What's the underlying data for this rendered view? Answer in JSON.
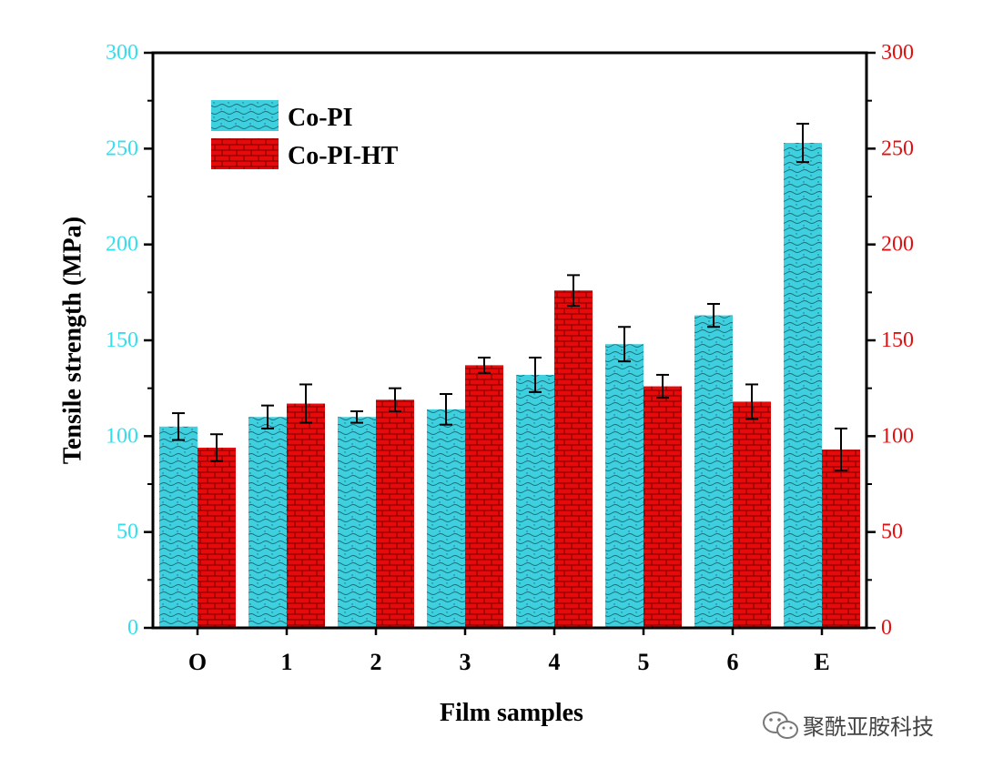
{
  "chart_data": {
    "type": "bar",
    "categories": [
      "O",
      "1",
      "2",
      "3",
      "4",
      "5",
      "6",
      "E"
    ],
    "series": [
      {
        "name": "Co-PI",
        "values": [
          105,
          110,
          110,
          114,
          132,
          148,
          163,
          253
        ],
        "errors": [
          7,
          6,
          3,
          8,
          9,
          9,
          6,
          10
        ],
        "color": "#3fd0e0"
      },
      {
        "name": "Co-PI-HT",
        "values": [
          94,
          117,
          119,
          137,
          176,
          126,
          118,
          93
        ],
        "errors": [
          7,
          10,
          6,
          4,
          8,
          6,
          9,
          11
        ],
        "color": "#e60a0a"
      }
    ],
    "xlabel": "Film samples",
    "ylabel": "Tensile strength (MPa)",
    "ylim": [
      0,
      300
    ],
    "yticks": [
      "0",
      "50",
      "100",
      "150",
      "200",
      "250",
      "300"
    ],
    "left_axis_color": "#33dfee",
    "right_axis_color": "#e01010",
    "legend_position": "top-left",
    "grid": false
  },
  "watermark": {
    "icon": "wechat-icon",
    "text": "聚酰亚胺科技"
  }
}
